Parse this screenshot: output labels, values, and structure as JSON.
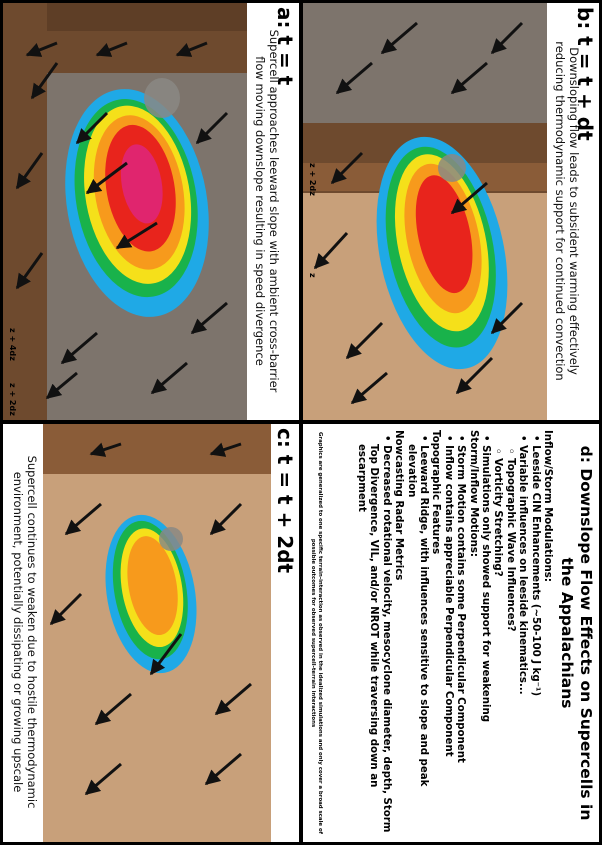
{
  "panels": {
    "a": {
      "title": "a: t = t",
      "caption": "Supercell approaches leeward slope with ambient cross-barrier flow moving downslope resulting in speed divergence",
      "z_labels": [
        "z + 4dz",
        "z + 2dz"
      ]
    },
    "b": {
      "title": "b: t = t + dt",
      "caption": "Downsloping flow leads to subsident warming effectively reducing thermodynamic support for continued convection",
      "z_labels": [
        "z + 2dz",
        "z"
      ]
    },
    "c": {
      "title": "c: t = t + 2dt",
      "caption": "Supercell continues to weaken due to hostile thermodynamic environment, potentially dissipating or growing upscale"
    },
    "d": {
      "title": "d: Downslope Flow Effects on Supercells in the Appalachians",
      "items": [
        {
          "level": 0,
          "text": "Inflow/Storm Modulations:"
        },
        {
          "level": 1,
          "text": "Leeside CIN Enhancements (~50-100 J kg⁻¹)"
        },
        {
          "level": 1,
          "text": "Variable influences on leeside kinematics..."
        },
        {
          "level": 2,
          "text": "Topographic Wave Influences?"
        },
        {
          "level": 2,
          "text": "Vorticity Stretching?"
        },
        {
          "level": 1,
          "text": "Simulations only showed support for weakening"
        },
        {
          "level": 0,
          "text": "Storm/Inflow Motions:"
        },
        {
          "level": 1,
          "text": "Storm Motion contains some Perpendicular Component"
        },
        {
          "level": 1,
          "text": "Inflow contains appreciable Perpendicular Component"
        },
        {
          "level": 0,
          "text": "Topographic Features"
        },
        {
          "level": 1,
          "text": "Leeward Ridge, with influences sensitive to slope and peak elevation"
        },
        {
          "level": 0,
          "text": "Nowcasting Radar Metrics"
        },
        {
          "level": 1,
          "text": "Decreased rotational velocity, mesocyclone diameter, depth, Storm Top Divergence, VIL, and/or NROT while traversing down an escarpment"
        }
      ],
      "footnote": "Graphics are generalized to one specific terrain-interaction as observed in the idealized simulations and only cover a broad scale of possible outcomes for observed supercell-terrain interactions"
    }
  },
  "colors": {
    "terrain_dark": "#6e4a2e",
    "terrain_mid": "#8a5c38",
    "terrain_light": "#c8a07a",
    "terrain_grey": "#7d746c",
    "reflectivity": [
      "#1fa9e6",
      "#19b24b",
      "#f5e01a",
      "#f79a1c",
      "#e8241c",
      "#e0256e"
    ]
  }
}
